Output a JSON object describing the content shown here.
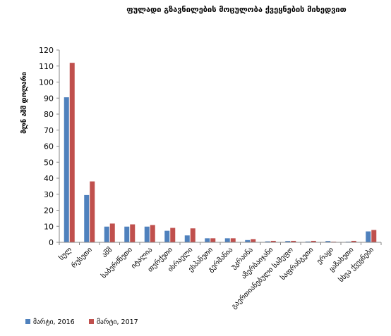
{
  "chart_data": {
    "type": "bar",
    "title": "ფულადი გზავნილების მოცულობა ქვეყნების მიხედვით",
    "ylabel": "მლნ აშშ დოლარი",
    "xlabel": "",
    "ylim": [
      0,
      120
    ],
    "yticks": [
      0,
      10,
      20,
      30,
      40,
      50,
      60,
      70,
      80,
      90,
      100,
      110,
      120
    ],
    "grid": false,
    "legend_position": "bottom-left",
    "categories": [
      "სულ",
      "რუსეთი",
      "აშშ",
      "საბერძნეთი",
      "იტალია",
      "თურქეთი",
      "ისრაელი",
      "ესპანეთი",
      "გერმანია",
      "უკრაინა",
      "აზერბაიჯანი",
      "გაერთიანებული სამეფო",
      "საფრანგეთი",
      "ერაყი",
      "ყაზახეთი",
      "სხვა ქვეყნები"
    ],
    "series": [
      {
        "name": "მარტი, 2016",
        "color": "#4f81bd",
        "values": [
          90.5,
          29.5,
          9.8,
          9.8,
          9.8,
          7.2,
          4.3,
          2.5,
          2.5,
          1.4,
          0.6,
          0.8,
          0.5,
          0.8,
          0.4,
          6.8
        ]
      },
      {
        "name": "მარტი, 2017",
        "color": "#c0504d",
        "values": [
          112,
          38,
          11.7,
          11.2,
          10.8,
          9.0,
          8.7,
          2.5,
          2.5,
          2.0,
          0.9,
          0.9,
          0.9,
          0.4,
          0.9,
          7.7
        ]
      }
    ]
  }
}
